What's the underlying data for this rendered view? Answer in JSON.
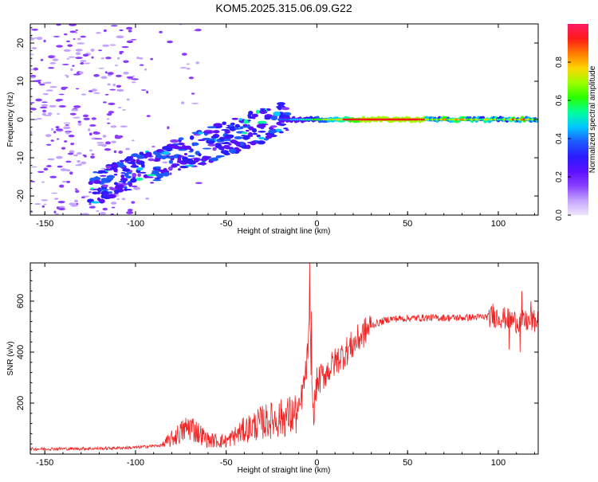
{
  "title": "KOM5.2025.315.06.09.G22",
  "colors": {
    "axis": "#000000",
    "snr_line": "#ee2222",
    "colormap": [
      "#f0e6ff",
      "#c3a3ff",
      "#8a3dff",
      "#5a10ff",
      "#2a1cff",
      "#1d5bff",
      "#00c8ff",
      "#00ff9a",
      "#2aff00",
      "#9dff00",
      "#ffd400",
      "#ff7a00",
      "#ff1a1a",
      "#ff1a66"
    ]
  },
  "chart_data": [
    {
      "type": "heatmap",
      "name": "spectrogram",
      "xlabel": "Height of straight line (km)",
      "ylabel": "Frequency (Hz)",
      "xlim": [
        -158,
        122
      ],
      "ylim": [
        -25,
        25
      ],
      "xticks": [
        -150,
        -100,
        -50,
        0,
        50,
        100
      ],
      "yticks": [
        -20,
        -10,
        0,
        10,
        20
      ],
      "colorbar": {
        "label": "Normalized spectral amplitude",
        "range": [
          0,
          1
        ],
        "ticks": [
          "0.0",
          "0.2",
          "0.4",
          "0.6",
          "0.8"
        ]
      },
      "description_of_pattern": {
        "stable_line": {
          "x_start": -20,
          "x_end": 122,
          "frequency": 0
        },
        "ramp_segment": {
          "x_start": -125,
          "x_end": -15,
          "freq_start": -18,
          "freq_end": 1
        },
        "scatter_region": {
          "x_start": -158,
          "x_end": -90,
          "freq_range": [
            -25,
            25
          ]
        }
      }
    },
    {
      "type": "line",
      "name": "snr",
      "xlabel": "Height of straight line (km)",
      "ylabel": "SNR (v/v)",
      "xlim": [
        -158,
        122
      ],
      "ylim": [
        0,
        750
      ],
      "xticks": [
        -150,
        -100,
        -50,
        0,
        50,
        100
      ],
      "yticks": [
        200,
        400,
        600
      ],
      "control_points": [
        {
          "x": -158,
          "y": 20
        },
        {
          "x": -120,
          "y": 22
        },
        {
          "x": -100,
          "y": 26
        },
        {
          "x": -85,
          "y": 35
        },
        {
          "x": -70,
          "y": 110
        },
        {
          "x": -60,
          "y": 55
        },
        {
          "x": -50,
          "y": 50
        },
        {
          "x": -40,
          "y": 95
        },
        {
          "x": -30,
          "y": 125
        },
        {
          "x": -20,
          "y": 140
        },
        {
          "x": -10,
          "y": 160
        },
        {
          "x": -6,
          "y": 320
        },
        {
          "x": -4,
          "y": 500
        },
        {
          "x": -2,
          "y": 150
        },
        {
          "x": 0,
          "y": 280
        },
        {
          "x": 5,
          "y": 320
        },
        {
          "x": 10,
          "y": 360
        },
        {
          "x": 20,
          "y": 430
        },
        {
          "x": 30,
          "y": 505
        },
        {
          "x": 40,
          "y": 530
        },
        {
          "x": 60,
          "y": 535
        },
        {
          "x": 80,
          "y": 535
        },
        {
          "x": 100,
          "y": 540
        },
        {
          "x": 110,
          "y": 520
        },
        {
          "x": 122,
          "y": 520
        }
      ],
      "spikes": [
        {
          "x": -4,
          "y": 760
        },
        {
          "x": -3,
          "y": 560
        },
        {
          "x": 97,
          "y": 590
        },
        {
          "x": 113,
          "y": 640
        },
        {
          "x": 118,
          "y": 600
        },
        {
          "x": 106,
          "y": 410
        },
        {
          "x": 112,
          "y": 400
        }
      ]
    }
  ]
}
